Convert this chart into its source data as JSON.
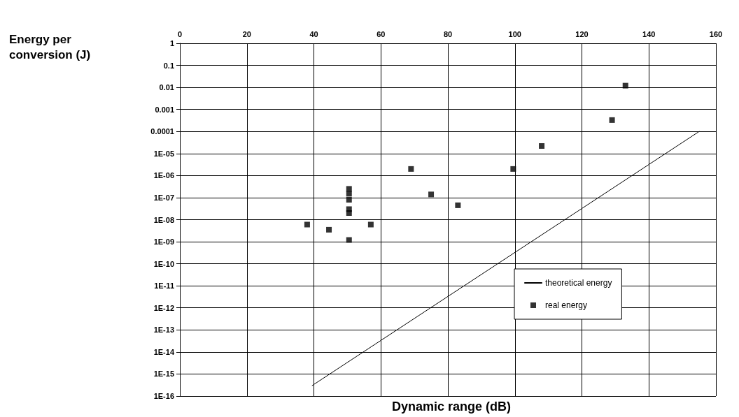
{
  "chart_data": {
    "type": "scatter",
    "xlabel": "Dynamic range (dB)",
    "annotations": [
      "Energy per conversion (J)"
    ],
    "log": "y",
    "grid": true,
    "legend": "bottom right",
    "xlim": [
      0,
      160
    ],
    "xticks": [
      0,
      20,
      40,
      60,
      80,
      100,
      120,
      140,
      160
    ],
    "ylim": [
      1e-16,
      1
    ],
    "yticks": [
      1,
      0.1,
      0.01,
      0.001,
      0.0001,
      {
        "value": 1e-05,
        "label": "1E-05"
      },
      {
        "value": 1e-06,
        "label": "1E-06"
      },
      {
        "value": 1e-07,
        "label": "1E-07"
      },
      {
        "value": 1e-08,
        "label": "1E-08"
      },
      {
        "value": 1e-09,
        "label": "1E-09"
      },
      {
        "value": 1e-10,
        "label": "1E-10"
      },
      {
        "value": 1e-11,
        "label": "1E-11"
      },
      {
        "value": 1e-12,
        "label": "1E-12"
      },
      {
        "value": 1e-13,
        "label": "1E-13"
      },
      {
        "value": 1e-14,
        "label": "1E-14"
      },
      {
        "value": 1e-15,
        "label": "1E-15"
      },
      {
        "value": 1e-16,
        "label": "1E-16"
      }
    ],
    "series": [
      {
        "name": "theoretical energy",
        "type": "line",
        "color": "#000000",
        "marker": "none",
        "line_style": "solid",
        "x": [
          39.5,
          155
        ],
        "values": [
          3e-16,
          0.0001
        ]
      },
      {
        "name": "real energy",
        "type": "scatter",
        "color": "#000000",
        "marker": "square",
        "x": [
          38,
          44.5,
          50.5,
          50.5,
          50.5,
          50.5,
          50.5,
          50.5,
          57,
          69,
          75,
          83,
          99.5,
          108,
          129,
          133
        ],
        "values": [
          6e-09,
          3.5e-09,
          2.5e-07,
          1.5e-07,
          8e-08,
          3e-08,
          2e-08,
          1.2e-09,
          6e-09,
          2e-06,
          1.4e-07,
          4.5e-08,
          2e-06,
          2.2e-05,
          0.00033,
          0.012
        ]
      }
    ]
  }
}
